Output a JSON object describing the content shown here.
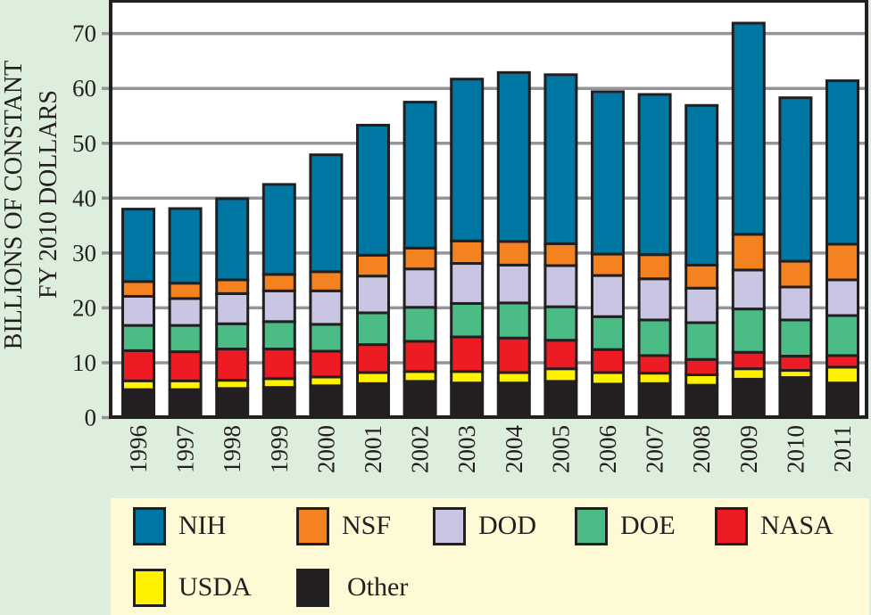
{
  "chart_data": {
    "type": "bar",
    "stacked": true,
    "title": "",
    "xlabel": "",
    "ylabel": "BILLIONS OF CONSTANT FY 2010 DOLLARS",
    "ylabel_lines": [
      "BILLIONS OF CONSTANT",
      "FY 2010 DOLLARS"
    ],
    "ylim": [
      0,
      75
    ],
    "yticks": [
      0,
      10,
      20,
      30,
      40,
      50,
      60,
      70
    ],
    "grid": true,
    "legend_position": "bottom",
    "categories": [
      "1996",
      "1997",
      "1998",
      "1999",
      "2000",
      "2001",
      "2002",
      "2003",
      "2004",
      "2005",
      "2006",
      "2007",
      "2008",
      "2009",
      "2010",
      "2011"
    ],
    "series": [
      {
        "name": "Other",
        "color": "#231F20",
        "values": [
          5.1,
          5.1,
          5.3,
          5.5,
          5.8,
          6.2,
          6.6,
          6.3,
          6.3,
          6.6,
          6.1,
          6.2,
          5.9,
          7.0,
          7.3,
          6.3
        ]
      },
      {
        "name": "USDA",
        "color": "#FFF200",
        "values": [
          1.6,
          1.6,
          1.5,
          1.6,
          1.6,
          2.0,
          1.8,
          2.1,
          1.9,
          2.3,
          2.1,
          1.9,
          1.9,
          1.9,
          1.3,
          2.9
        ]
      },
      {
        "name": "NASA",
        "color": "#ED1C24",
        "values": [
          5.5,
          5.3,
          5.7,
          5.4,
          4.7,
          5.1,
          5.5,
          6.3,
          6.3,
          5.2,
          4.2,
          3.2,
          2.8,
          3.0,
          2.6,
          2.1
        ]
      },
      {
        "name": "DOE",
        "color": "#4CBC87",
        "values": [
          4.6,
          4.8,
          4.6,
          5.0,
          4.9,
          5.8,
          6.2,
          6.1,
          6.4,
          6.1,
          6.0,
          6.5,
          6.7,
          7.9,
          6.6,
          7.3
        ]
      },
      {
        "name": "DOD",
        "color": "#C8C6E3",
        "values": [
          5.3,
          4.9,
          5.5,
          5.6,
          6.1,
          6.7,
          7.0,
          7.3,
          6.9,
          7.5,
          7.5,
          7.5,
          6.3,
          7.1,
          6.0,
          6.5
        ]
      },
      {
        "name": "NSF",
        "color": "#F58220",
        "values": [
          2.7,
          2.8,
          2.5,
          3.0,
          3.5,
          3.8,
          3.8,
          4.1,
          4.3,
          4.0,
          3.9,
          4.4,
          4.2,
          6.5,
          4.7,
          6.5
        ]
      },
      {
        "name": "NIH",
        "color": "#0076A3",
        "values": [
          13.2,
          13.6,
          14.8,
          16.4,
          21.3,
          23.7,
          26.6,
          29.5,
          30.8,
          30.8,
          29.6,
          29.2,
          29.1,
          38.5,
          29.8,
          29.8
        ]
      }
    ],
    "totals": [
      38.0,
      38.1,
      39.9,
      42.5,
      47.9,
      53.3,
      57.5,
      61.7,
      62.9,
      62.5,
      59.4,
      58.9,
      56.9,
      71.9,
      58.3,
      61.4
    ]
  },
  "legend": {
    "items": [
      {
        "label": "NIH",
        "color": "#0076A3"
      },
      {
        "label": "NSF",
        "color": "#F58220"
      },
      {
        "label": "DOD",
        "color": "#C8C6E3"
      },
      {
        "label": "DOE",
        "color": "#4CBC87"
      },
      {
        "label": "NASA",
        "color": "#ED1C24"
      },
      {
        "label": "USDA",
        "color": "#FFF200"
      },
      {
        "label": "Other",
        "color": "#231F20"
      }
    ]
  }
}
